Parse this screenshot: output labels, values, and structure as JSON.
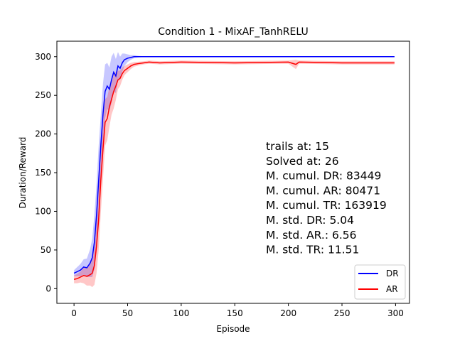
{
  "chart_data": {
    "type": "line",
    "title": "Condition 1 - MixAF_TanhRELU",
    "xlabel": "Episode",
    "ylabel": "Duration/Reward",
    "xlim": [
      -16,
      313
    ],
    "ylim": [
      -19,
      320
    ],
    "x_ticks": [
      0,
      50,
      100,
      150,
      200,
      250,
      300
    ],
    "y_ticks": [
      0,
      50,
      100,
      150,
      200,
      250,
      300
    ],
    "grid": false,
    "legend_position": "bottom-right",
    "x": [
      0,
      3,
      6,
      9,
      12,
      15,
      17,
      19,
      21,
      23,
      25,
      27,
      29,
      31,
      33,
      35,
      37,
      39,
      41,
      43,
      45,
      47,
      50,
      53,
      56,
      60,
      65,
      70,
      80,
      100,
      150,
      200,
      207,
      210,
      250,
      299
    ],
    "series": [
      {
        "name": "DR",
        "color": "#0000ff",
        "band_color": "#0000ff",
        "values": [
          20,
          22,
          24,
          28,
          27,
          33,
          40,
          60,
          95,
          140,
          185,
          225,
          255,
          262,
          258,
          270,
          280,
          275,
          288,
          285,
          292,
          296,
          298,
          299,
          300,
          300,
          300,
          300,
          300,
          300,
          300,
          300,
          300,
          300,
          300,
          300
        ],
        "std": [
          4,
          6,
          8,
          10,
          12,
          18,
          25,
          35,
          40,
          45,
          40,
          40,
          35,
          30,
          28,
          30,
          25,
          22,
          18,
          15,
          12,
          8,
          5,
          3,
          2,
          1,
          0.5,
          0.5,
          0.5,
          0.5,
          0.5,
          0.5,
          0.5,
          0.5,
          0.5,
          0.5
        ]
      },
      {
        "name": "AR",
        "color": "#ff0000",
        "band_color": "#ff0000",
        "values": [
          12,
          13,
          15,
          17,
          16,
          18,
          20,
          30,
          55,
          90,
          140,
          180,
          215,
          220,
          235,
          245,
          255,
          262,
          270,
          272,
          278,
          282,
          285,
          288,
          290,
          291,
          292,
          293,
          292,
          293,
          292,
          293,
          290,
          293,
          292,
          292
        ],
        "std": [
          5,
          6,
          7,
          10,
          12,
          14,
          18,
          25,
          35,
          40,
          42,
          38,
          30,
          28,
          26,
          20,
          22,
          18,
          12,
          10,
          8,
          6,
          5,
          4,
          3,
          2.5,
          2,
          2,
          2,
          2,
          2,
          2,
          6,
          2,
          2,
          2
        ]
      }
    ],
    "annotations": [
      "trails at: 15",
      "Solved at: 26",
      "M. cumul. DR: 83449",
      "M. cumul. AR: 80471",
      "M. cumul. TR: 163919",
      "M. std. DR: 5.04",
      "M. std. AR.: 6.56",
      "M. std. TR: 11.51"
    ]
  }
}
